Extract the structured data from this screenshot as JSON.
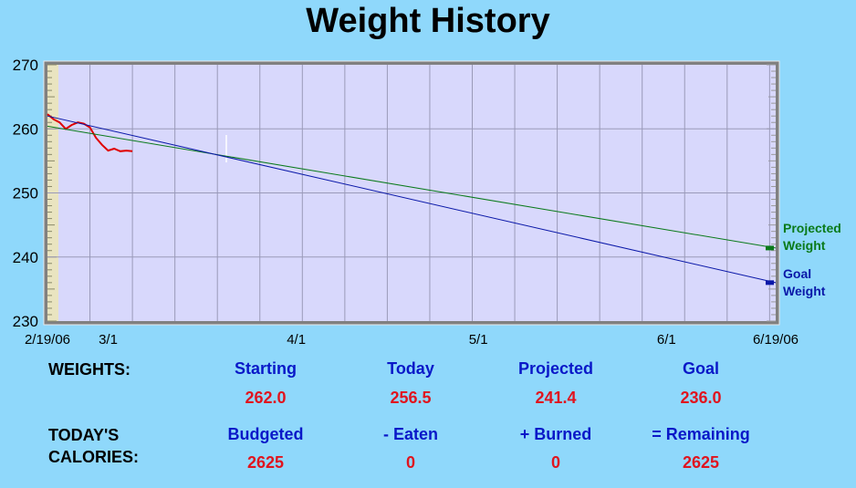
{
  "app": {
    "title": "Weight History"
  },
  "colors": {
    "background": "#8fd8fb",
    "plot_background": "#d8d8fc",
    "actual": "#e00000",
    "projected": "#0a7a1a",
    "goal": "#0a18a8",
    "header_text": "#0a18c8",
    "value_text": "#e0141e"
  },
  "chart_data": {
    "type": "line",
    "title": "Weight History",
    "xlabel": "",
    "ylabel": "",
    "x_range": [
      "2006-02-19",
      "2006-06-19"
    ],
    "ylim": [
      230,
      270
    ],
    "y_ticks": [
      230,
      240,
      250,
      260,
      270
    ],
    "x_ticks": [
      {
        "date": "2006-02-19",
        "label": "2/19/06"
      },
      {
        "date": "2006-03-01",
        "label": "3/1"
      },
      {
        "date": "2006-04-01",
        "label": "4/1"
      },
      {
        "date": "2006-05-01",
        "label": "5/1"
      },
      {
        "date": "2006-06-01",
        "label": "6/1"
      },
      {
        "date": "2006-06-19",
        "label": "6/19/06"
      }
    ],
    "grid": true,
    "legend_position": "right",
    "series": [
      {
        "name": "",
        "color": "#e00000",
        "points": [
          {
            "x": "2006-02-19",
            "y": 262.3
          },
          {
            "x": "2006-02-20",
            "y": 261.5
          },
          {
            "x": "2006-02-21",
            "y": 261.0
          },
          {
            "x": "2006-02-22",
            "y": 260.0
          },
          {
            "x": "2006-02-23",
            "y": 260.6
          },
          {
            "x": "2006-02-24",
            "y": 261.0
          },
          {
            "x": "2006-02-25",
            "y": 260.8
          },
          {
            "x": "2006-02-26",
            "y": 260.2
          },
          {
            "x": "2006-02-27",
            "y": 258.6
          },
          {
            "x": "2006-02-28",
            "y": 257.5
          },
          {
            "x": "2006-03-01",
            "y": 256.6
          },
          {
            "x": "2006-03-02",
            "y": 256.9
          },
          {
            "x": "2006-03-03",
            "y": 256.5
          },
          {
            "x": "2006-03-04",
            "y": 256.6
          },
          {
            "x": "2006-03-05",
            "y": 256.5
          }
        ]
      },
      {
        "name": "Projected Weight",
        "color": "#0a7a1a",
        "points": [
          {
            "x": "2006-02-19",
            "y": 260.4
          },
          {
            "x": "2006-06-19",
            "y": 241.4
          }
        ]
      },
      {
        "name": "Goal Weight",
        "color": "#0a18a8",
        "points": [
          {
            "x": "2006-02-19",
            "y": 262.0
          },
          {
            "x": "2006-06-19",
            "y": 236.0
          }
        ]
      }
    ]
  },
  "legend": {
    "projected_label": "Projected\nWeight",
    "goal_label": "Goal\nWeight"
  },
  "weights": {
    "row_label": "WEIGHTS:",
    "starting_label": "Starting",
    "starting_value": "262.0",
    "today_label": "Today",
    "today_value": "256.5",
    "projected_label": "Projected",
    "projected_value": "241.4",
    "goal_label": "Goal",
    "goal_value": "236.0"
  },
  "calories": {
    "row_label": "TODAY'S\nCALORIES:",
    "budgeted_label": "Budgeted",
    "budgeted_value": "2625",
    "eaten_label": "- Eaten",
    "eaten_value": "0",
    "burned_label": "+ Burned",
    "burned_value": "0",
    "remaining_label": "= Remaining",
    "remaining_value": "2625"
  }
}
